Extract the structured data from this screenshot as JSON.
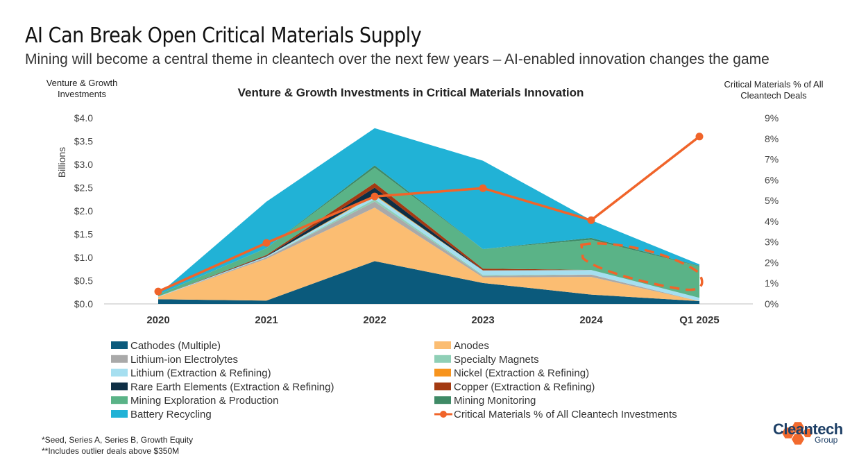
{
  "header": {
    "title": "AI Can Break Open Critical Materials Supply",
    "subtitle": "Mining will become a central theme in cleantech over the next few years – AI-enabled innovation changes the game"
  },
  "footnotes": [
    "*Seed, Series A, Series B, Growth Equity",
    "**Includes outlier deals above $350M"
  ],
  "logo": {
    "name": "Cleantech",
    "sub": "Group",
    "color": "#f26a2e"
  },
  "chart_data": {
    "type": "area",
    "title": "Venture & Growth Investments in Critical Materials Innovation",
    "left_axis_title": "Venture & Growth Investments",
    "left_axis_unit": "Billions",
    "right_axis_title": "Critical Materials % of All Cleantech Deals",
    "categories": [
      "2020",
      "2021",
      "2022",
      "2023",
      "2024",
      "Q1 2025"
    ],
    "y_left_ticks": [
      "$0.0",
      "$0.5",
      "$1.0",
      "$1.5",
      "$2.0",
      "$2.5",
      "$3.0",
      "$3.5",
      "$4.0"
    ],
    "y_left_lim": [
      0,
      4
    ],
    "y_right_ticks": [
      "0%",
      "1%",
      "2%",
      "3%",
      "4%",
      "5%",
      "6%",
      "7%",
      "8%",
      "9%"
    ],
    "y_right_lim": [
      0,
      9
    ],
    "legend_placement": "bottom",
    "series": [
      {
        "name": "Cathodes (Multiple)",
        "color": "#0b5a7c",
        "values": [
          0.1,
          0.07,
          0.92,
          0.45,
          0.2,
          0.06
        ]
      },
      {
        "name": "Anodes",
        "color": "#fbbd72",
        "values": [
          0.05,
          0.9,
          1.15,
          0.12,
          0.38,
          0.0
        ]
      },
      {
        "name": "Lithium-ion Electrolytes",
        "color": "#a9a9a9",
        "values": [
          0.0,
          0.03,
          0.13,
          0.03,
          0.05,
          0.0
        ]
      },
      {
        "name": "Specialty Magnets",
        "color": "#8fcfb6",
        "values": [
          0.0,
          0.0,
          0.05,
          0.02,
          0.0,
          0.0
        ]
      },
      {
        "name": "Lithium (Extraction & Refining)",
        "color": "#a6dff0",
        "values": [
          0.01,
          0.02,
          0.08,
          0.1,
          0.1,
          0.07
        ]
      },
      {
        "name": "Nickel (Extraction & Refining)",
        "color": "#f7941d",
        "values": [
          0.0,
          0.0,
          0.02,
          0.0,
          0.0,
          0.0
        ]
      },
      {
        "name": "Rare Earth Elements (Extraction & Refining)",
        "color": "#0e2f45",
        "values": [
          0.0,
          0.01,
          0.15,
          0.0,
          0.0,
          0.0
        ]
      },
      {
        "name": "Copper (Extraction & Refining)",
        "color": "#a33a12",
        "values": [
          0.0,
          0.02,
          0.1,
          0.04,
          0.0,
          0.0
        ]
      },
      {
        "name": "Mining Exploration & Production",
        "color": "#5ab387",
        "values": [
          0.04,
          0.15,
          0.33,
          0.42,
          0.65,
          0.68
        ]
      },
      {
        "name": "Mining Monitoring",
        "color": "#3f8a66",
        "values": [
          0.0,
          0.0,
          0.05,
          0.0,
          0.04,
          0.01
        ]
      },
      {
        "name": "Battery Recycling",
        "color": "#21b2d6",
        "values": [
          0.0,
          1.0,
          0.8,
          1.9,
          0.38,
          0.03
        ]
      }
    ],
    "line_series": {
      "name": "Critical Materials % of All Cleantech Investments",
      "color": "#f0642a",
      "values": [
        0.6,
        2.95,
        5.2,
        5.6,
        4.05,
        8.1
      ]
    }
  }
}
